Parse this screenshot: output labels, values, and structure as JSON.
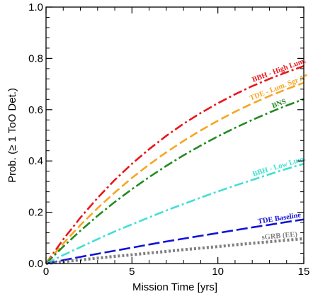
{
  "chart_data": {
    "type": "line",
    "xlabel": "Mission Time [yrs]",
    "ylabel": "Prob. (≥ 1 ToO Det.)",
    "xlim": [
      0,
      15
    ],
    "ylim": [
      0,
      1.0
    ],
    "x_ticks": [
      0,
      5,
      10,
      15
    ],
    "x_tick_labels": [
      "0",
      "5",
      "10",
      "15"
    ],
    "y_ticks": [
      0.0,
      0.2,
      0.4,
      0.6,
      0.8,
      1.0
    ],
    "y_tick_labels": [
      "0.0",
      "0.2",
      "0.4",
      "0.6",
      "0.8",
      "1.0"
    ],
    "grid": false,
    "x": [
      0,
      1,
      2,
      3,
      4,
      5,
      6,
      7,
      8,
      9,
      10,
      11,
      12,
      13,
      14,
      15
    ],
    "series": [
      {
        "name": "BBH - High Lum.",
        "color": "#e8171b",
        "dash": "dash-dot",
        "values": [
          0.0,
          0.094,
          0.179,
          0.256,
          0.326,
          0.389,
          0.446,
          0.498,
          0.545,
          0.587,
          0.625,
          0.66,
          0.692,
          0.72,
          0.746,
          0.77
        ]
      },
      {
        "name": "TDE - Lum. Sgr A*",
        "color": "#f5a623",
        "dash": "dash",
        "values": [
          0.0,
          0.078,
          0.15,
          0.216,
          0.277,
          0.334,
          0.386,
          0.434,
          0.478,
          0.519,
          0.557,
          0.592,
          0.624,
          0.653,
          0.68,
          0.705
        ]
      },
      {
        "name": "BNS",
        "color": "#228b22",
        "dash": "dash-dot",
        "values": [
          0.0,
          0.066,
          0.128,
          0.186,
          0.24,
          0.29,
          0.337,
          0.381,
          0.422,
          0.46,
          0.496,
          0.529,
          0.56,
          0.589,
          0.616,
          0.641
        ]
      },
      {
        "name": "BBH - Low Lum.",
        "color": "#40e0d0",
        "dash": "dash-dot",
        "values": [
          0.0,
          0.033,
          0.064,
          0.095,
          0.125,
          0.153,
          0.18,
          0.207,
          0.232,
          0.257,
          0.281,
          0.304,
          0.326,
          0.348,
          0.369,
          0.389
        ]
      },
      {
        "name": "TDE Baseline",
        "color": "#1414d6",
        "dash": "long-dash",
        "values": [
          0.0,
          0.013,
          0.026,
          0.038,
          0.05,
          0.062,
          0.074,
          0.086,
          0.097,
          0.108,
          0.119,
          0.13,
          0.141,
          0.151,
          0.162,
          0.172
        ]
      },
      {
        "name": "sGRB (EE)",
        "color": "#808080",
        "dash": "dot",
        "values": [
          0.0,
          0.007,
          0.014,
          0.021,
          0.028,
          0.034,
          0.041,
          0.047,
          0.054,
          0.06,
          0.066,
          0.073,
          0.079,
          0.085,
          0.091,
          0.097
        ]
      }
    ]
  }
}
